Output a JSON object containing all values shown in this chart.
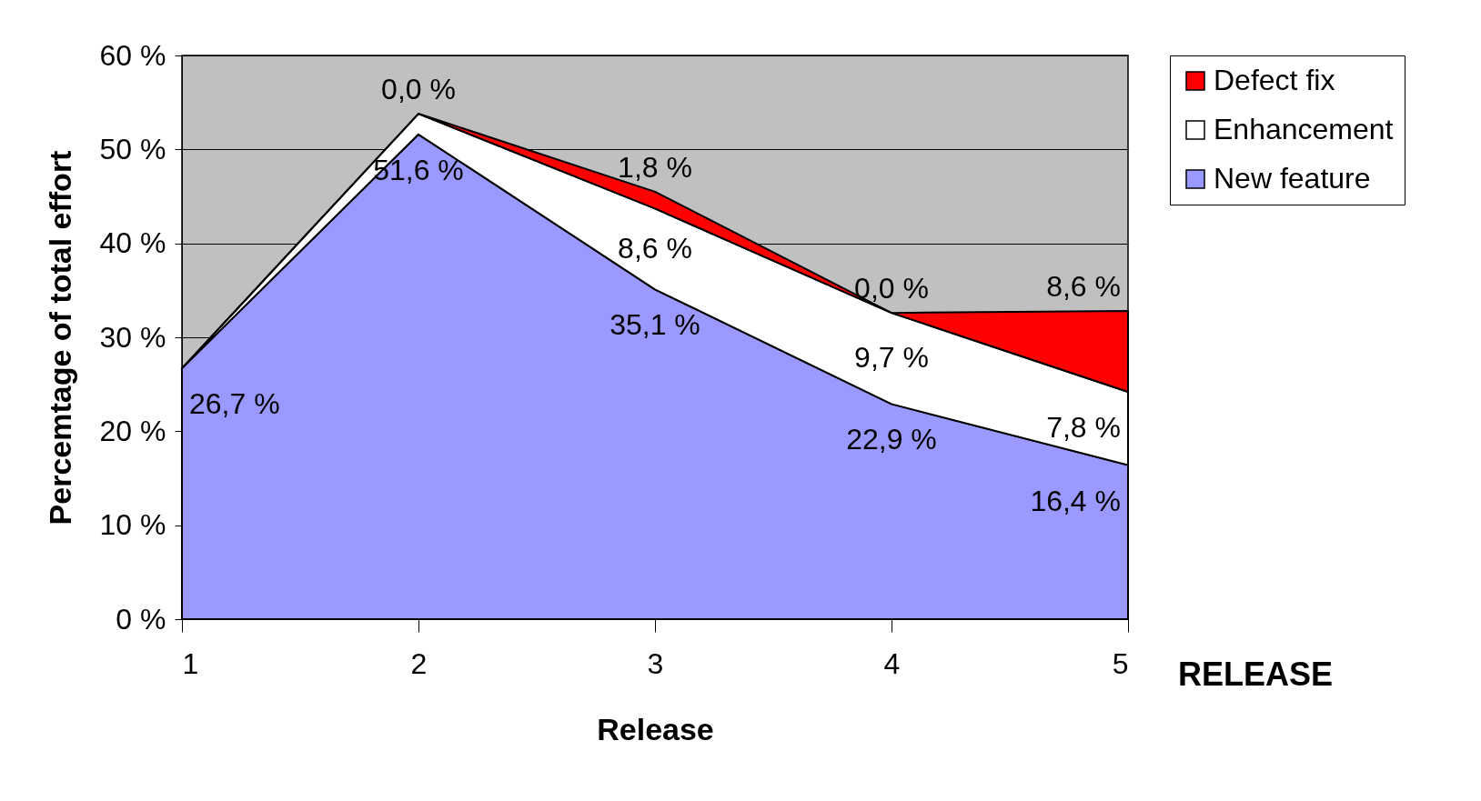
{
  "chart_data": {
    "type": "area",
    "stacked": true,
    "xlabel": "Release",
    "ylabel": "Percemtage of total effort",
    "x": [
      1,
      2,
      3,
      4,
      5
    ],
    "xlim": [
      1,
      5
    ],
    "xticks": [
      1,
      2,
      3,
      4,
      5
    ],
    "ylim": [
      0,
      60
    ],
    "yticks": [
      {
        "value": 0,
        "label": "0 %"
      },
      {
        "value": 10,
        "label": "10 %"
      },
      {
        "value": 20,
        "label": "20 %"
      },
      {
        "value": 30,
        "label": "30 %"
      },
      {
        "value": 40,
        "label": "40 %"
      },
      {
        "value": 50,
        "label": "50 %"
      },
      {
        "value": 60,
        "label": "60 %"
      }
    ],
    "grid": "y",
    "legend": "right",
    "series": [
      {
        "name": "New feature",
        "color": "#9999ff",
        "values": [
          26.7,
          51.6,
          35.1,
          22.9,
          16.4
        ],
        "value_labels": [
          "26,7 %",
          "51,6 %",
          "35,1 %",
          "22,9 %",
          "16,4 %"
        ]
      },
      {
        "name": "Enhancement",
        "color": "#ffffff",
        "values": [
          0,
          2.2,
          8.6,
          9.7,
          7.8
        ],
        "value_labels": [
          null,
          null,
          "8,6 %",
          "9,7 %",
          "7,8 %"
        ]
      },
      {
        "name": "Defect fix",
        "color": "#ff0000",
        "values": [
          0,
          0,
          1.8,
          0,
          8.6
        ],
        "value_labels": [
          null,
          "0,0 %",
          "1,8 %",
          "0,0 %",
          "8,6 %"
        ]
      }
    ],
    "annotations": [
      "RELEASE"
    ]
  }
}
